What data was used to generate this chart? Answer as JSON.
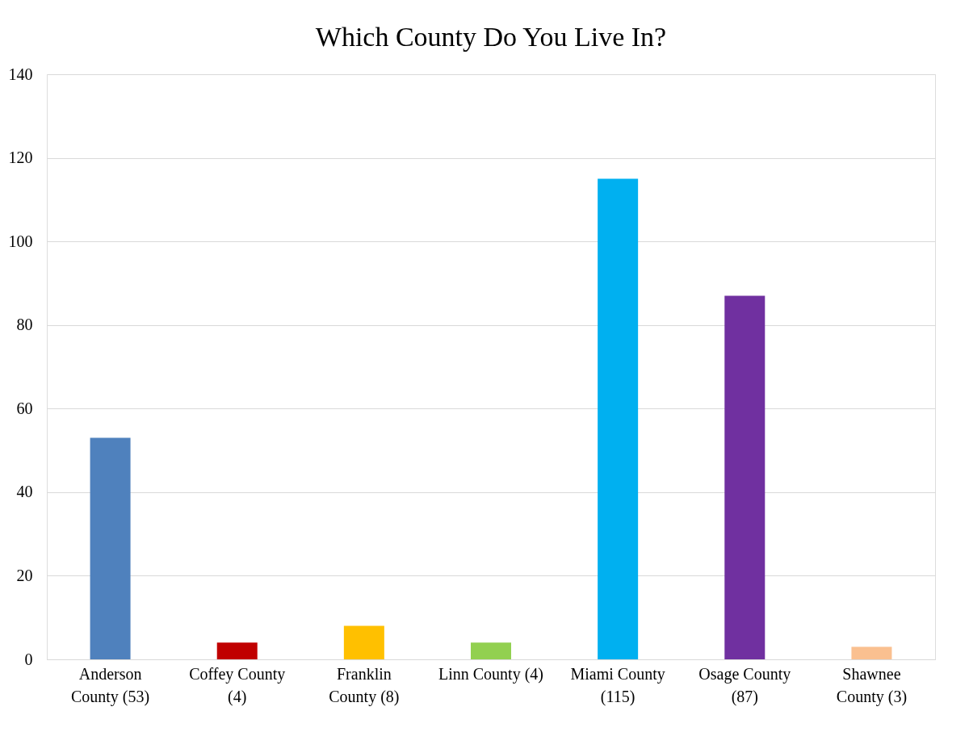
{
  "chart_data": {
    "type": "bar",
    "title": "Which County Do You Live In?",
    "categories": [
      "Anderson\nCounty (53)",
      "Coffey County\n(4)",
      "Franklin\nCounty (8)",
      "Linn County (4)",
      "Miami County\n(115)",
      "Osage County\n(87)",
      "Shawnee\nCounty (3)"
    ],
    "values": [
      53,
      4,
      8,
      4,
      115,
      87,
      3
    ],
    "colors": [
      "#4f81bd",
      "#c00000",
      "#ffc000",
      "#92d050",
      "#00b0f0",
      "#7030a0",
      "#fac090"
    ],
    "ylim": [
      0,
      140
    ],
    "yticks": [
      0,
      20,
      40,
      60,
      80,
      100,
      120,
      140
    ],
    "grid": "y",
    "legend": false
  }
}
